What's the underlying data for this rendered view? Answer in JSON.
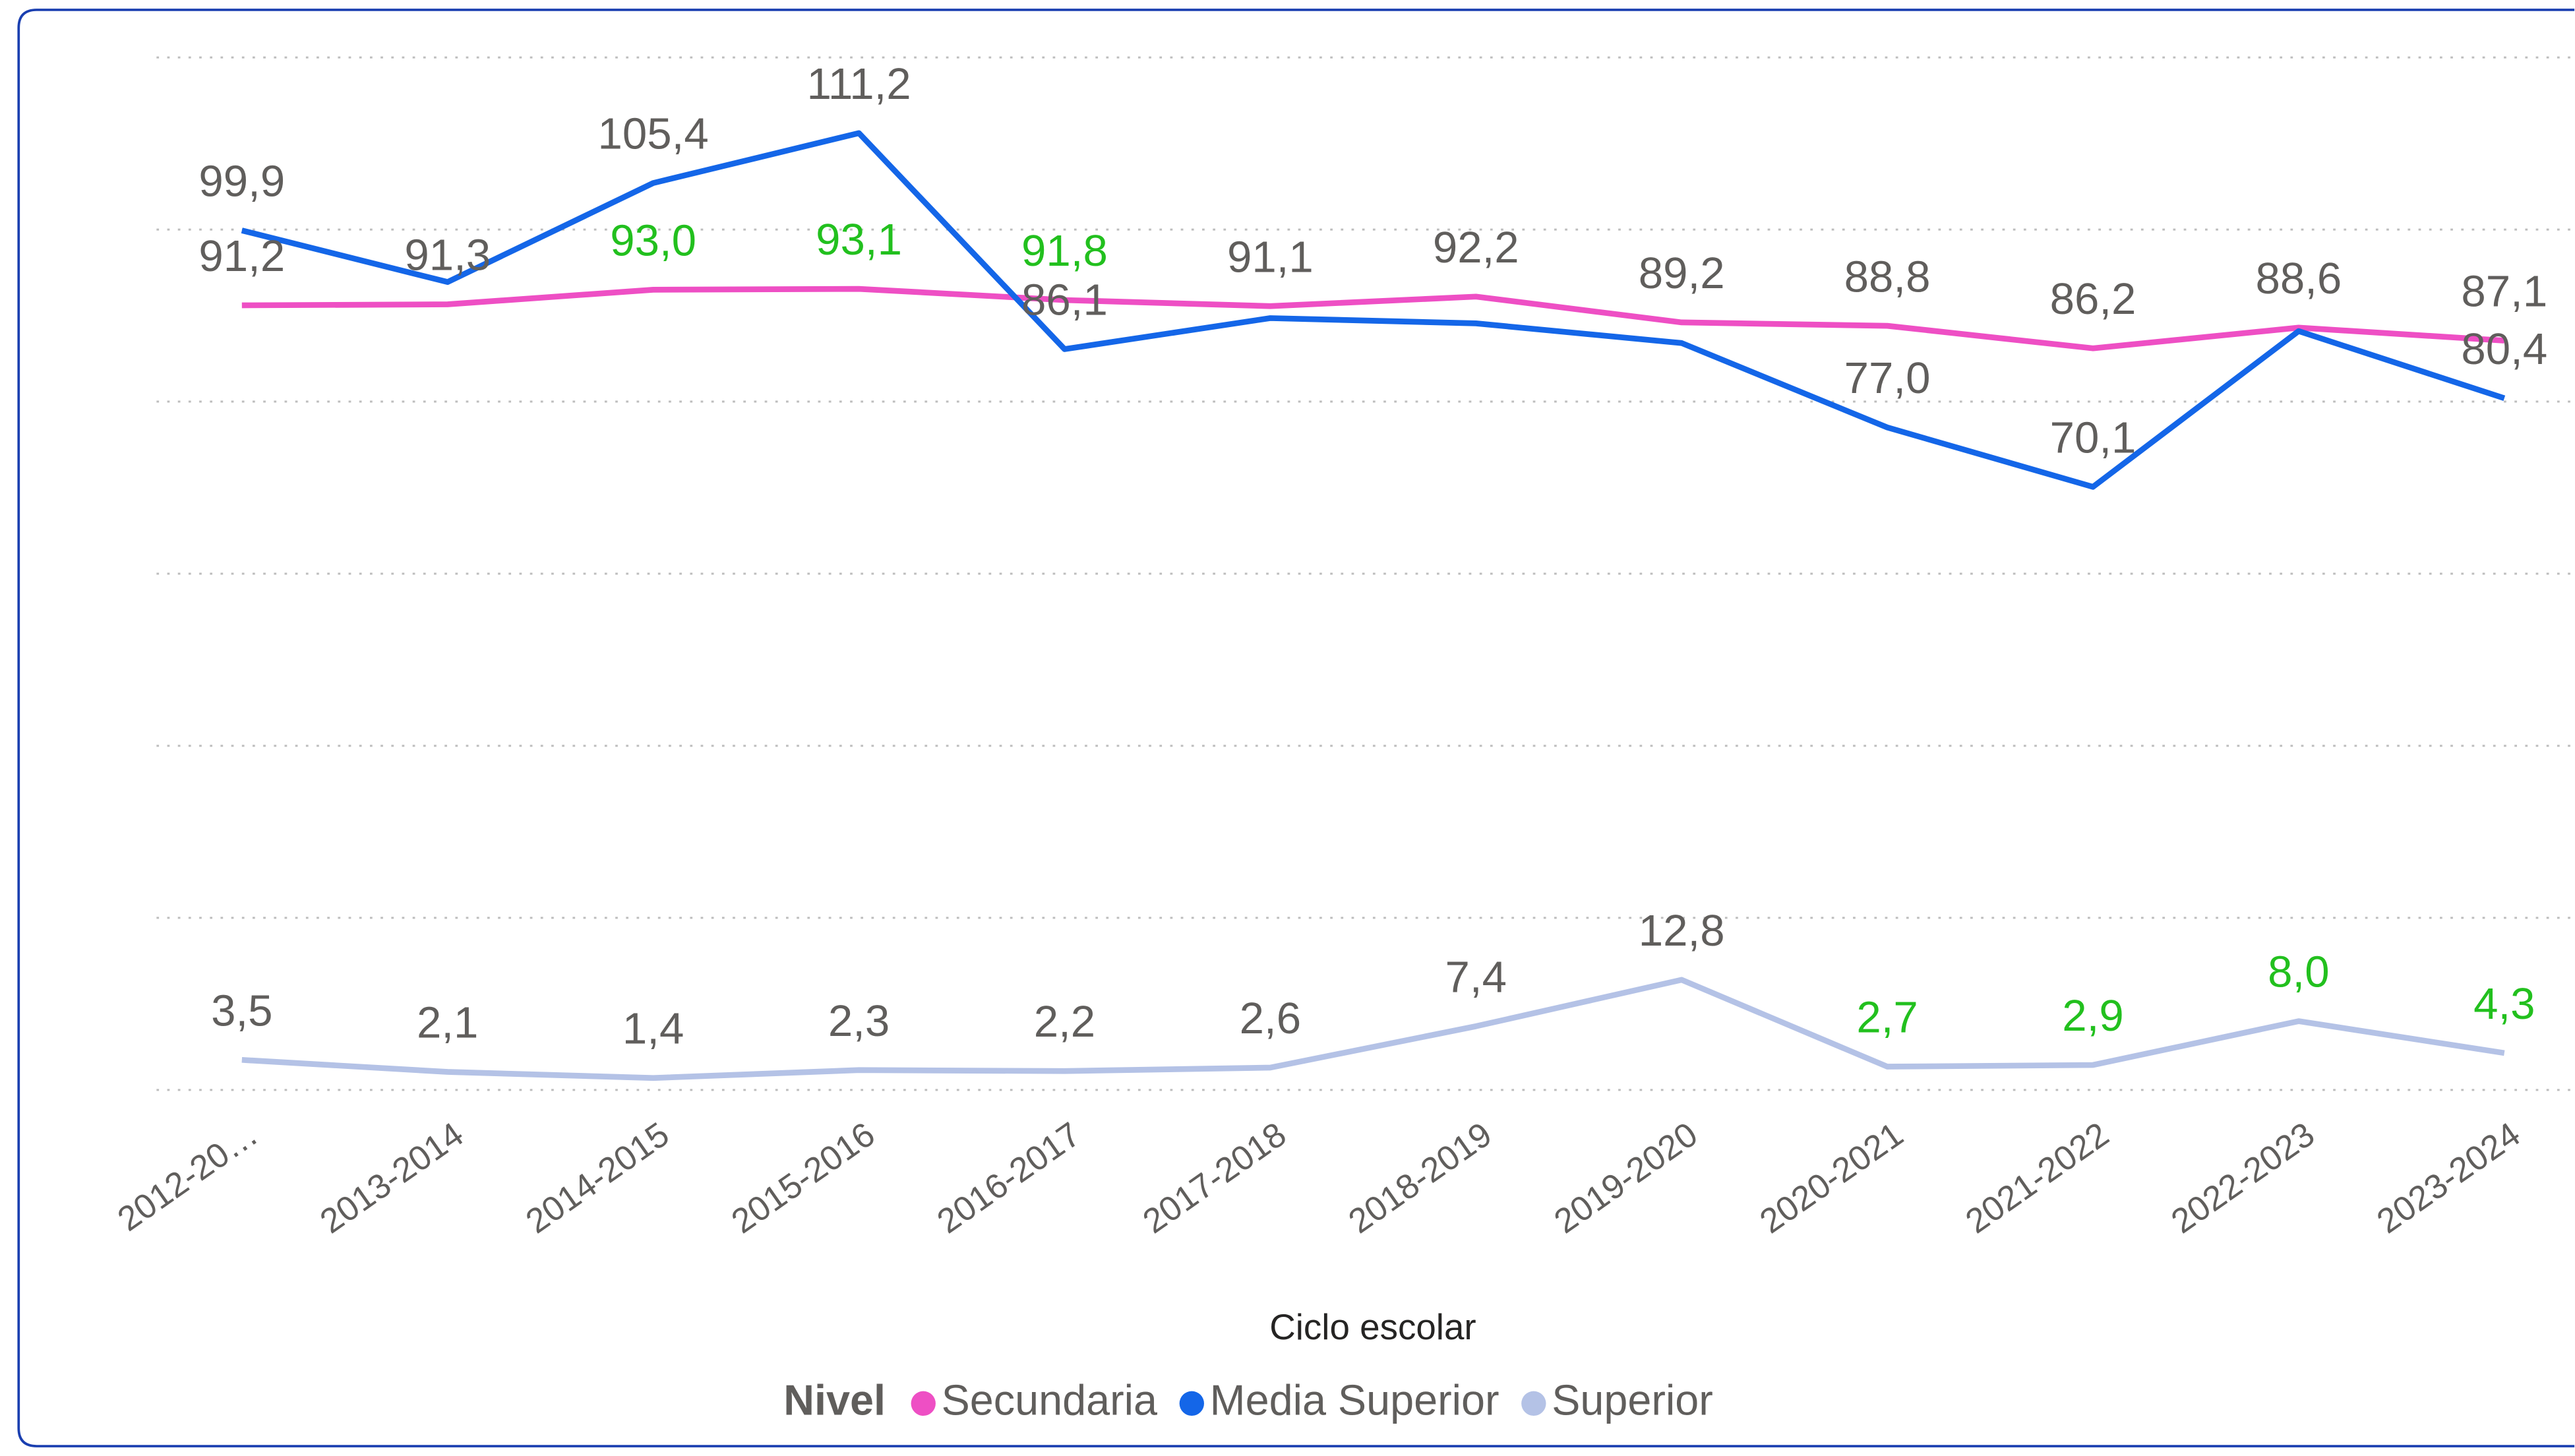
{
  "chart_data": {
    "type": "line",
    "x_label": "Ciclo escolar",
    "legend_title": "Nivel",
    "categories": [
      "2012-20…",
      "2013-2014",
      "2014-2015",
      "2015-2016",
      "2016-2017",
      "2017-2018",
      "2018-2019",
      "2019-2020",
      "2020-2021",
      "2021-2022",
      "2022-2023",
      "2023-2024"
    ],
    "ylim": [
      0,
      120
    ],
    "yticks": [
      0,
      20,
      40,
      60,
      80,
      100,
      120
    ],
    "grid": true,
    "label_color": "#605e5c",
    "series": [
      {
        "name": "Secundaria",
        "color": "#ee4fc4",
        "values": [
          91.2,
          91.3,
          93.0,
          93.1,
          91.8,
          91.1,
          92.2,
          89.2,
          88.8,
          86.2,
          88.6,
          87.1
        ],
        "value_labels": [
          "91,2",
          "91,3",
          "93,0",
          "93,1",
          "91,8",
          "91,1",
          "92,2",
          "89,2",
          "88,8",
          "86,2",
          "88,6",
          "87,1"
        ],
        "value_label_colors": [
          null,
          null,
          "#22c01e",
          "#22c01e",
          "#22c01e",
          null,
          null,
          null,
          null,
          null,
          null,
          null
        ]
      },
      {
        "name": "Media Superior",
        "color": "#1466e8",
        "values": [
          99.9,
          93.9,
          105.4,
          111.2,
          86.1,
          89.7,
          89.1,
          86.8,
          77.0,
          70.1,
          88.2,
          80.4
        ],
        "value_labels": [
          "99,9",
          null,
          "105,4",
          "111,2",
          "86,1",
          null,
          null,
          null,
          "77,0",
          "70,1",
          null,
          "80,4"
        ],
        "value_label_colors": [
          null,
          null,
          null,
          null,
          null,
          null,
          null,
          null,
          null,
          null,
          null,
          null
        ]
      },
      {
        "name": "Superior",
        "color": "#b4c2e6",
        "values": [
          3.5,
          2.1,
          1.4,
          2.3,
          2.2,
          2.6,
          7.4,
          12.8,
          2.7,
          2.9,
          8.0,
          4.3
        ],
        "value_labels": [
          "3,5",
          "2,1",
          "1,4",
          "2,3",
          "2,2",
          "2,6",
          "7,4",
          "12,8",
          "2,7",
          "2,9",
          "8,0",
          "4,3"
        ],
        "value_label_colors": [
          null,
          null,
          null,
          null,
          null,
          null,
          null,
          null,
          "#22c01e",
          "#22c01e",
          "#22c01e",
          "#22c01e"
        ]
      }
    ]
  }
}
